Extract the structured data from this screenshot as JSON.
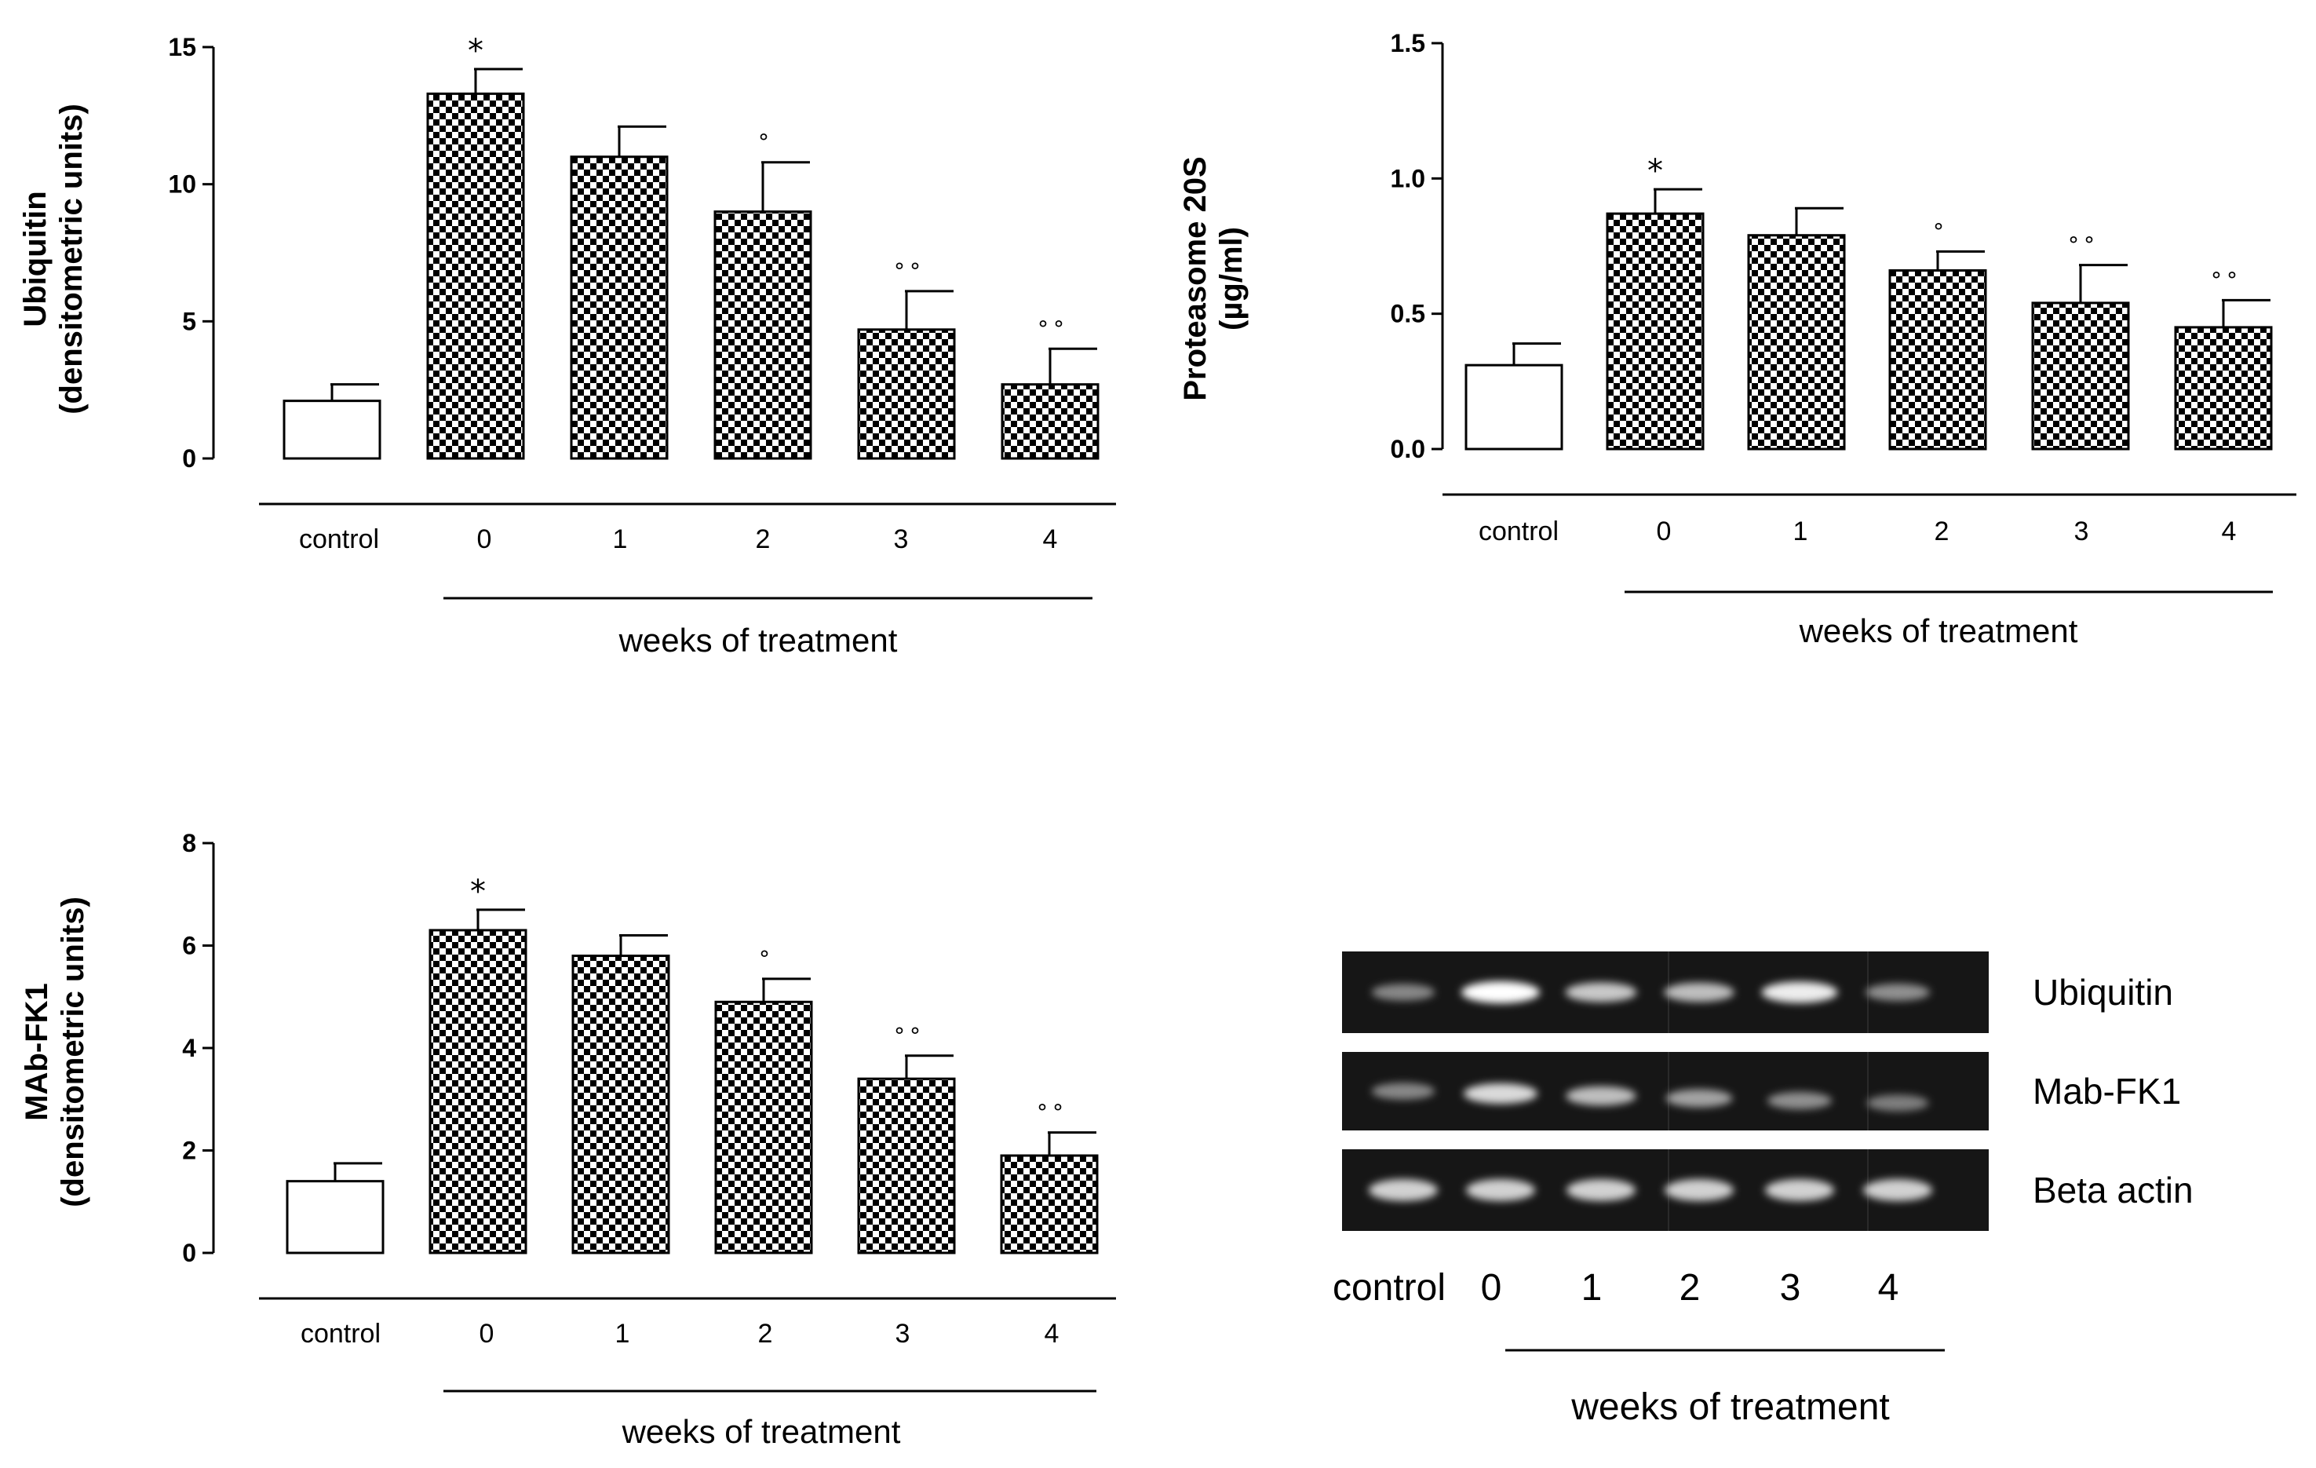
{
  "chart_data": [
    {
      "type": "bar",
      "panel": "top-left",
      "ylabel": [
        "Ubiquitin",
        "(densitometric units)"
      ],
      "ylim": [
        0,
        15
      ],
      "yticks": [
        "0",
        "5",
        "10",
        "15"
      ],
      "categories": [
        "control",
        "0",
        "1",
        "2",
        "3",
        "4"
      ],
      "values": [
        2.1,
        13.3,
        11.0,
        9.0,
        4.7,
        2.7
      ],
      "errors": [
        0.6,
        0.9,
        1.1,
        1.8,
        1.4,
        1.3
      ],
      "significance": [
        "",
        "*",
        "",
        "°",
        "°°",
        "°°"
      ],
      "group_label": "weeks of treatment"
    },
    {
      "type": "bar",
      "panel": "top-right",
      "ylabel": [
        "Proteasome 20S",
        "(µg/ml)"
      ],
      "ylim": [
        0,
        1.5
      ],
      "yticks": [
        "0.0",
        "0.5",
        "1.0",
        "1.5"
      ],
      "categories": [
        "control",
        "0",
        "1",
        "2",
        "3",
        "4"
      ],
      "values": [
        0.31,
        0.87,
        0.79,
        0.66,
        0.54,
        0.45
      ],
      "errors": [
        0.08,
        0.09,
        0.1,
        0.07,
        0.14,
        0.1
      ],
      "significance": [
        "",
        "*",
        "",
        "°",
        "°°",
        "°°"
      ],
      "group_label": "weeks of treatment"
    },
    {
      "type": "bar",
      "panel": "bottom-left",
      "ylabel": [
        "MAb-FK1",
        "(densitometric units)"
      ],
      "ylim": [
        0,
        8
      ],
      "yticks": [
        "0",
        "2",
        "4",
        "6",
        "8"
      ],
      "categories": [
        "control",
        "0",
        "1",
        "2",
        "3",
        "4"
      ],
      "values": [
        1.4,
        6.3,
        5.8,
        4.9,
        3.4,
        1.9
      ],
      "errors": [
        0.35,
        0.4,
        0.4,
        0.45,
        0.45,
        0.45
      ],
      "significance": [
        "",
        "*",
        "",
        "°",
        "°°",
        "°°"
      ],
      "group_label": "weeks of treatment"
    }
  ],
  "blot": {
    "rows": [
      "Ubiquitin",
      "Mab-FK1",
      "Beta actin"
    ],
    "lanes": [
      "control",
      "0",
      "1",
      "2",
      "3",
      "4"
    ],
    "band_intensity": [
      [
        0.35,
        1.0,
        0.7,
        0.65,
        0.9,
        0.4
      ],
      [
        0.35,
        0.8,
        0.65,
        0.5,
        0.4,
        0.3
      ],
      [
        0.75,
        0.75,
        0.75,
        0.75,
        0.75,
        0.75
      ]
    ],
    "group_label": "weeks of treatment"
  },
  "colors": {
    "axis": "#000000",
    "bar_fill_control": "#ffffff",
    "blot_bg": "#1a1a1a"
  }
}
